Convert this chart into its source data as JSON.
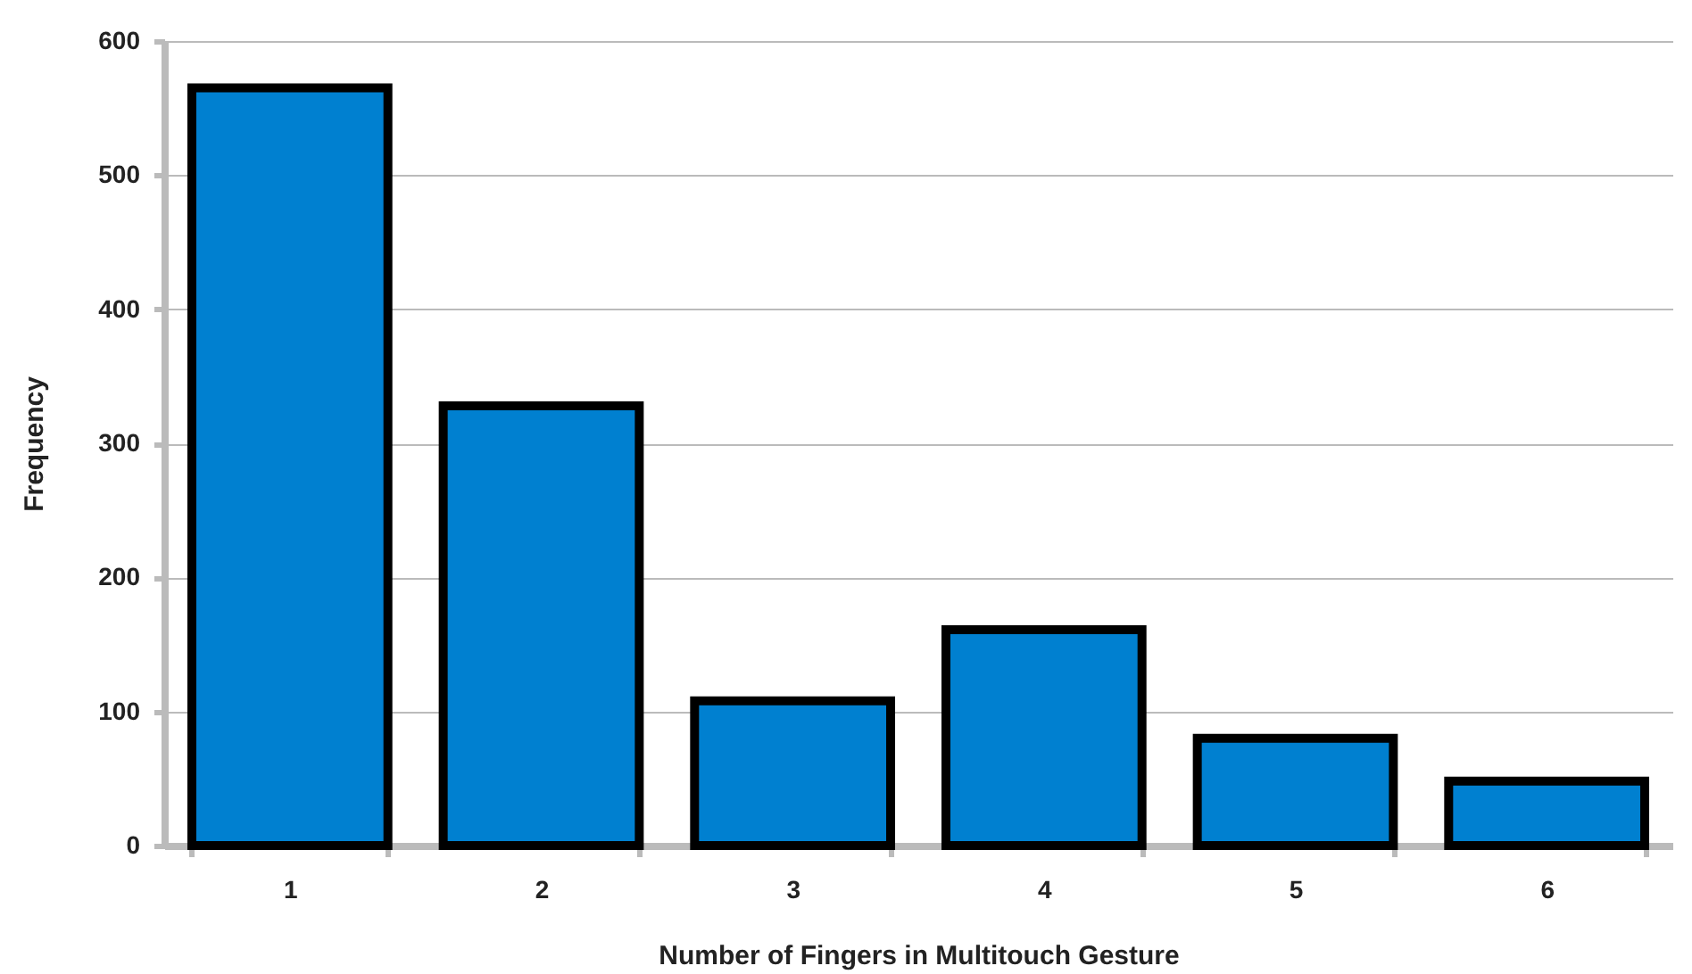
{
  "chart_data": {
    "type": "bar",
    "xlabel": "Number of Fingers in Multitouch Gesture",
    "ylabel": "Frequency",
    "categories": [
      "1",
      "2",
      "3",
      "4",
      "5",
      "6"
    ],
    "values": [
      565,
      328,
      108,
      161,
      80,
      48
    ],
    "color": "#0080d0",
    "ylim": [
      0,
      600
    ],
    "yticks": [
      0,
      100,
      200,
      300,
      400,
      500,
      600
    ],
    "grid": "y"
  }
}
